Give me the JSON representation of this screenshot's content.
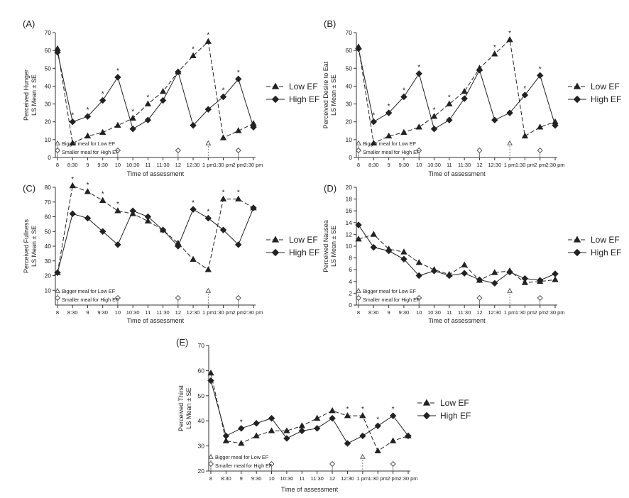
{
  "x_categories": [
    "8",
    "8:30",
    "9",
    "9:30",
    "10",
    "10:30",
    "11",
    "11:30",
    "12",
    "12:30",
    "1 pm",
    "1:30 pm",
    "2 pm",
    "2:30 pm"
  ],
  "xlabel": "Time of assessment",
  "legend": {
    "low": "Low EF",
    "high": "High EF"
  },
  "meal_notes": {
    "low": "Bigger meal for Low EF",
    "high": "Smaller meal for High EF"
  },
  "chart_data": [
    {
      "panel": "(A)",
      "type": "line",
      "ylabel": [
        "Perceived Hunger",
        "LS Mean ± SE"
      ],
      "ylim": [
        0,
        70
      ],
      "yticks": [
        0,
        10,
        20,
        30,
        40,
        50,
        60,
        70
      ],
      "series": [
        {
          "name": "Low EF",
          "values": [
            61,
            8,
            12,
            14,
            18,
            22,
            30,
            37,
            48,
            57,
            65,
            11,
            15,
            19
          ]
        },
        {
          "name": "High EF",
          "values": [
            59,
            20,
            23,
            32,
            45,
            16,
            21,
            32,
            48,
            18,
            27,
            34,
            44,
            17
          ]
        }
      ],
      "asterisks": [
        1,
        2,
        3,
        4,
        5,
        6,
        9,
        10,
        11,
        12
      ],
      "meal_low": [
        0,
        10
      ],
      "meal_high": [
        0,
        4,
        8,
        12
      ]
    },
    {
      "panel": "(B)",
      "type": "line",
      "ylabel": [
        "Perceived Desire to Eat",
        "LS Mean ± SE"
      ],
      "ylim": [
        0,
        70
      ],
      "yticks": [
        0,
        10,
        20,
        30,
        40,
        50,
        60,
        70
      ],
      "series": [
        {
          "name": "Low EF",
          "values": [
            62,
            8,
            12,
            14,
            17,
            23,
            30,
            37,
            50,
            58,
            66,
            12,
            17,
            20
          ]
        },
        {
          "name": "High EF",
          "values": [
            61,
            20,
            25,
            34,
            47,
            16,
            21,
            33,
            49,
            21,
            25,
            35,
            46,
            18
          ]
        }
      ],
      "asterisks": [
        1,
        2,
        3,
        4,
        5,
        6,
        9,
        10,
        11,
        12
      ],
      "meal_low": [
        0,
        10
      ],
      "meal_high": [
        0,
        4,
        8,
        12
      ]
    },
    {
      "panel": "(C)",
      "type": "line",
      "ylabel": [
        "Perceived Fullness",
        "LS Mean ± SE"
      ],
      "ylim": [
        0,
        80
      ],
      "yticks": [
        10,
        20,
        30,
        40,
        50,
        60,
        70,
        80
      ],
      "series": [
        {
          "name": "Low EF",
          "values": [
            22,
            81,
            77,
            71,
            64,
            62,
            57,
            51,
            42,
            31,
            24,
            72,
            72,
            66
          ]
        },
        {
          "name": "High EF",
          "values": [
            22,
            62,
            59,
            50,
            41,
            64,
            60,
            51,
            40,
            65,
            59,
            51,
            41,
            66
          ]
        }
      ],
      "asterisks": [
        1,
        2,
        3,
        4,
        9,
        10,
        11,
        12
      ],
      "meal_low": [
        0,
        10
      ],
      "meal_high": [
        0,
        4,
        8,
        12
      ]
    },
    {
      "panel": "(D)",
      "type": "line",
      "ylabel": [
        "Perceived Nausea",
        "LS Mean ± SE"
      ],
      "ylim": [
        0,
        20
      ],
      "yticks": [
        0,
        2,
        4,
        6,
        8,
        10,
        12,
        14,
        16,
        18,
        20
      ],
      "series": [
        {
          "name": "Low EF",
          "values": [
            11.2,
            12,
            9.5,
            9,
            7.2,
            6,
            5.2,
            6.8,
            4.2,
            5.5,
            5.8,
            3.8,
            4,
            4.3
          ]
        },
        {
          "name": "High EF",
          "values": [
            13.6,
            9.8,
            9.2,
            7.8,
            5,
            5.8,
            5,
            5.4,
            4.3,
            3.7,
            5.6,
            4.5,
            4.2,
            5.3
          ]
        }
      ],
      "asterisks": [],
      "meal_low": [
        0,
        10
      ],
      "meal_high": [
        0,
        4,
        8,
        12
      ]
    },
    {
      "panel": "(E)",
      "type": "line",
      "ylabel": [
        "Perceived Thirst",
        "LS Mean ± SE"
      ],
      "ylim": [
        20,
        70
      ],
      "yticks": [
        20,
        30,
        40,
        50,
        60,
        70
      ],
      "series": [
        {
          "name": "Low EF",
          "values": [
            59,
            32,
            31,
            34,
            36,
            36,
            38,
            41,
            44,
            42,
            42,
            28,
            32,
            34
          ]
        },
        {
          "name": "High EF",
          "values": [
            56,
            34,
            37,
            39,
            41,
            33,
            36,
            37,
            41,
            31,
            34,
            38,
            42,
            34
          ]
        }
      ],
      "asterisks": [
        2,
        9,
        10,
        11,
        12
      ],
      "meal_low": [
        0,
        10
      ],
      "meal_high": [
        0,
        4,
        8,
        12
      ]
    }
  ]
}
